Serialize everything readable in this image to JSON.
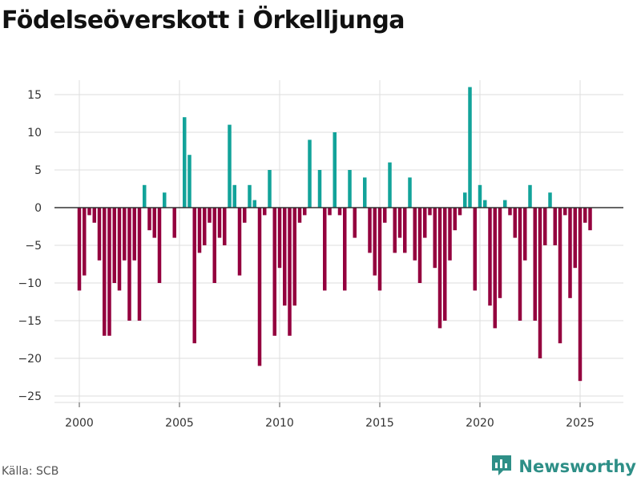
{
  "title": "Födelseöverskott i Örkelljunga",
  "source": "Källa: SCB",
  "brand": {
    "name": "Newsworthy",
    "icon": "newsworthy-logo-icon"
  },
  "colors": {
    "positive": "#12a39a",
    "negative": "#94003e",
    "grid": "#dddddd",
    "zero": "#333333",
    "brand": "#2e8f87"
  },
  "chart_data": {
    "type": "bar",
    "title": "Födelseöverskott i Örkelljunga",
    "xlabel": "",
    "ylabel": "",
    "frequency": "quarterly",
    "start": 2000.0,
    "step": 0.25,
    "xlim": [
      1999.1,
      2026.1
    ],
    "ylim": [
      -26,
      17
    ],
    "yticks": [
      15,
      10,
      5,
      0,
      -5,
      -10,
      -15,
      -20,
      -25
    ],
    "ytick_labels": [
      "15",
      "10",
      "5",
      "0",
      "−5",
      "−10",
      "−15",
      "−20",
      "−25"
    ],
    "xticks": [
      2000,
      2005,
      2010,
      2015,
      2020,
      2025
    ],
    "xtick_labels": [
      "2000",
      "2005",
      "2010",
      "2015",
      "2020",
      "2025"
    ],
    "values": [
      -11,
      -9,
      -1,
      -2,
      -7,
      -17,
      -17,
      -10,
      -11,
      -7,
      -15,
      -7,
      -15,
      3,
      -3,
      -4,
      -10,
      2,
      0,
      -4,
      0,
      12,
      7,
      -18,
      -6,
      -5,
      -2,
      -10,
      -4,
      -5,
      11,
      3,
      -9,
      -2,
      3,
      1,
      -21,
      -1,
      5,
      -17,
      -8,
      -13,
      -17,
      -13,
      -2,
      -1,
      9,
      0,
      5,
      -11,
      -1,
      10,
      -1,
      -11,
      5,
      -4,
      0,
      4,
      -6,
      -9,
      -11,
      -2,
      6,
      -6,
      -4,
      -6,
      4,
      -7,
      -10,
      -4,
      -1,
      -8,
      -16,
      -15,
      -7,
      -3,
      -1,
      2,
      16,
      -11,
      3,
      1,
      -13,
      -16,
      -12,
      1,
      -1,
      -4,
      -15,
      -7,
      3,
      -15,
      -20,
      -5,
      2,
      -5,
      -18,
      -1,
      -12,
      -8,
      -23,
      -2,
      -3
    ]
  }
}
